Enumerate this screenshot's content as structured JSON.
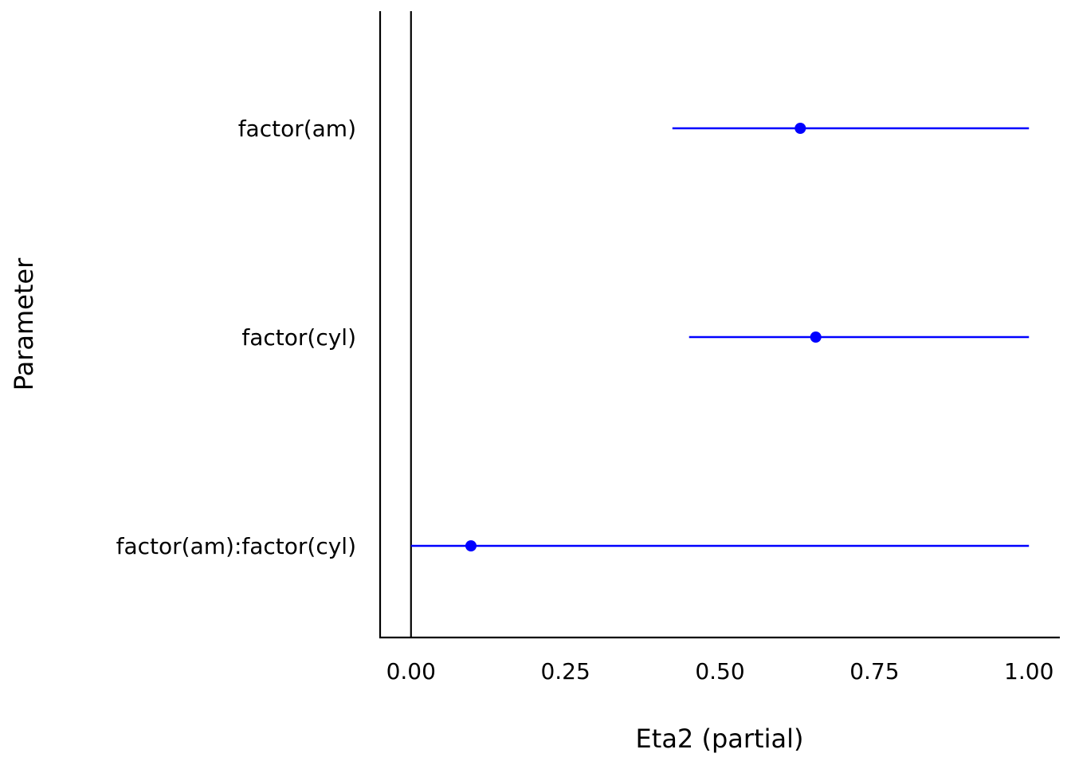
{
  "chart_data": {
    "type": "scatter",
    "xlabel": "Eta2 (partial)",
    "ylabel": "Parameter",
    "xlim": [
      -0.05,
      1.05
    ],
    "xticks": [
      0,
      0.25,
      0.5,
      0.75,
      1
    ],
    "xtick_labels": [
      "0.00",
      "0.25",
      "0.50",
      "0.75",
      "1.00"
    ],
    "reference_line_x": 0,
    "grid": false,
    "legend": "none",
    "categories": [
      "factor(am)",
      "factor(cyl)",
      "factor(am):factor(cyl)"
    ],
    "estimates": [
      0.63,
      0.655,
      0.097
    ],
    "ci_low": [
      0.423,
      0.45,
      0.0
    ],
    "ci_high": [
      1.0,
      1.0,
      1.0
    ],
    "color": "#0000ff"
  }
}
